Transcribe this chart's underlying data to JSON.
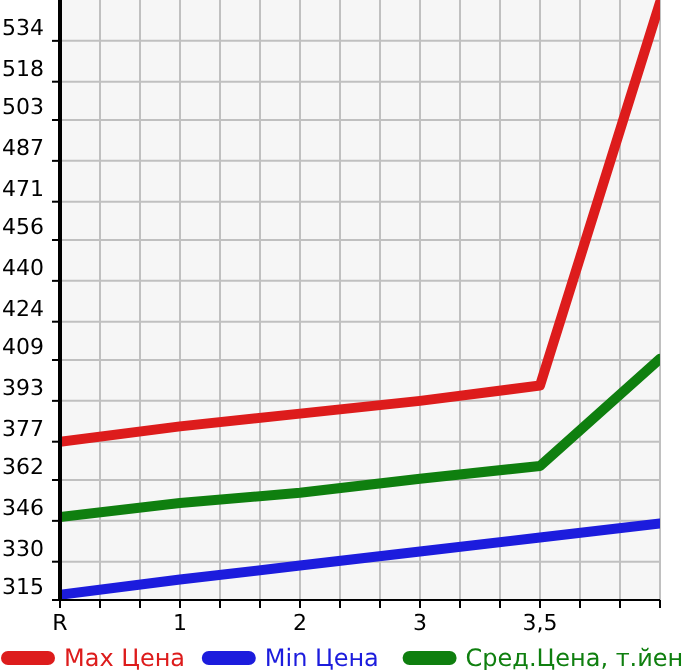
{
  "chart_data": {
    "type": "line",
    "categories": [
      "R",
      "1",
      "2",
      "3",
      "3,5",
      null
    ],
    "series": [
      {
        "name": "Max Цена",
        "color": "#dd1c1c",
        "values": [
          377,
          383,
          388,
          393,
          399,
          549
        ]
      },
      {
        "name": "Min Цена",
        "color": "#1c1cdd",
        "values": [
          317,
          323,
          328.5,
          334,
          339.5,
          345
        ]
      },
      {
        "name": "Сред.Цена, т.йен",
        "color": "#0f7f0f",
        "values": [
          347.5,
          353,
          357,
          362.5,
          367.5,
          409.5
        ]
      }
    ],
    "ylim": [
      315,
      550
    ],
    "yticks": [
      315,
      330,
      346,
      362,
      377,
      393,
      409,
      424,
      440,
      456,
      471,
      487,
      503,
      518,
      534
    ],
    "grid": true,
    "legend": "bottom",
    "marker": "none",
    "line_style": "solid"
  }
}
